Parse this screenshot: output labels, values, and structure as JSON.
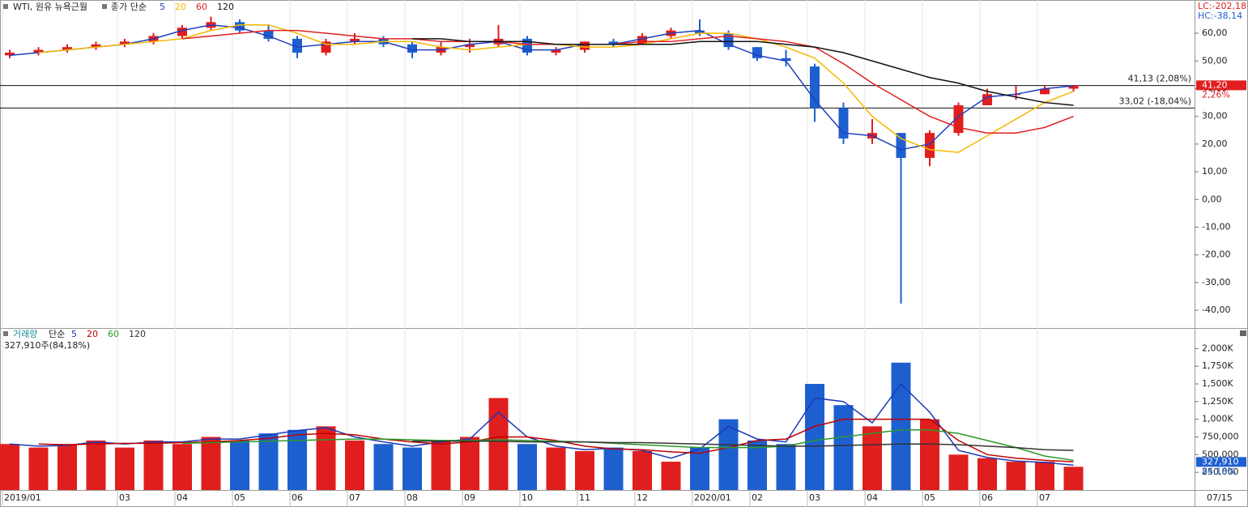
{
  "chart_data": [
    {
      "type": "candlestick",
      "title": "WTI, 원유 뉴욕근월",
      "legend_title": "종가 단순",
      "up_color": "#e01e1e",
      "down_color": "#1e5fd0",
      "open": [
        52,
        53,
        54,
        55,
        56,
        57,
        59,
        62,
        64,
        61,
        58,
        53,
        57,
        58,
        56,
        53,
        55,
        56,
        58,
        53,
        54,
        57,
        56,
        59,
        61,
        60,
        55,
        51,
        48,
        33,
        22,
        24,
        15,
        24,
        34,
        38,
        38,
        40
      ],
      "high": [
        54,
        55,
        56,
        57,
        58,
        60,
        63,
        66,
        65,
        63,
        59,
        58,
        60,
        59,
        57,
        57,
        58,
        63,
        59,
        55,
        57,
        58,
        60,
        62,
        65,
        61,
        55,
        54,
        49,
        35,
        29,
        24,
        25,
        35,
        40,
        41,
        41,
        41
      ],
      "low": [
        51,
        52,
        53,
        54,
        55,
        56,
        58,
        61,
        60,
        57,
        51,
        52,
        56,
        55,
        51,
        52,
        53,
        55,
        52,
        52,
        53,
        55,
        56,
        58,
        59,
        54,
        50,
        48,
        28,
        20,
        20,
        -37.6,
        12,
        23,
        34,
        36,
        38,
        39
      ],
      "close": [
        53,
        54,
        55,
        56,
        57,
        59,
        62,
        64,
        61,
        58,
        53,
        57,
        58,
        56,
        53,
        55,
        56,
        58,
        53,
        54,
        57,
        56,
        59,
        61,
        60,
        55,
        51,
        50,
        33,
        22,
        24,
        15,
        24,
        34,
        38,
        38,
        40,
        41.2
      ],
      "series": [
        {
          "name": "5",
          "color": "#1f3fbf",
          "values": [
            52,
            53,
            54,
            55,
            56,
            58,
            61,
            63,
            62,
            59,
            55,
            56,
            57,
            57,
            54,
            54,
            56,
            57,
            54,
            54,
            56,
            56,
            58,
            60,
            61,
            56,
            52,
            50,
            36,
            24,
            23,
            18,
            20,
            30,
            37,
            38,
            40,
            41
          ]
        },
        {
          "name": "20",
          "color": "#f5b800",
          "values": [
            null,
            53,
            54,
            55,
            56,
            57,
            58,
            61,
            63,
            63,
            60,
            56,
            56,
            57,
            57,
            55,
            54,
            55,
            56,
            56,
            55,
            55,
            56,
            58,
            60,
            60,
            58,
            55,
            51,
            42,
            30,
            22,
            18,
            17,
            23,
            29,
            35,
            39
          ]
        },
        {
          "name": "60",
          "color": "#e02020",
          "values": [
            null,
            null,
            null,
            null,
            null,
            null,
            58,
            59,
            60,
            61,
            61,
            60,
            59,
            58,
            58,
            57,
            57,
            57,
            56,
            56,
            56,
            56,
            57,
            57,
            58,
            59,
            58,
            57,
            55,
            49,
            42,
            36,
            30,
            26,
            24,
            24,
            26,
            30
          ]
        },
        {
          "name": "120",
          "color": "#111111",
          "values": [
            null,
            null,
            null,
            null,
            null,
            null,
            null,
            null,
            null,
            null,
            null,
            null,
            null,
            null,
            58,
            58,
            57,
            57,
            57,
            56,
            56,
            56,
            56,
            56,
            57,
            57,
            57,
            56,
            55,
            53,
            50,
            47,
            44,
            42,
            39,
            37,
            35,
            34
          ]
        }
      ],
      "ylim": [
        -46.4,
        72
      ],
      "yticks": [
        {
          "value": 60,
          "label": "60,00"
        },
        {
          "value": 50,
          "label": "50,00"
        },
        {
          "value": 40,
          "label": "40,00"
        },
        {
          "value": 30,
          "label": "30,00"
        },
        {
          "value": 20,
          "label": "20,00"
        },
        {
          "value": 10,
          "label": "10,00"
        },
        {
          "value": 0,
          "label": "0,00"
        },
        {
          "value": -10,
          "label": "-10,00"
        },
        {
          "value": -20,
          "label": "-20,00"
        },
        {
          "value": -30,
          "label": "-30,00"
        },
        {
          "value": -40,
          "label": "-40,00"
        }
      ],
      "hlines": [
        {
          "value": 41.13,
          "label": "41,13 (2,08%)"
        },
        {
          "value": 33.02,
          "label": "33,02 (-18,04%)"
        }
      ],
      "last_price": {
        "value": 41.2,
        "label": "41,20"
      },
      "change_label": "2,26%",
      "lc_label": "LC:-202,18",
      "hc_label": "HC:-38,14"
    },
    {
      "type": "bar",
      "title": "거래량",
      "legend_title": "단순",
      "categories": [
        "2019/01",
        null,
        null,
        null,
        "03",
        null,
        "04",
        null,
        "05",
        null,
        "06",
        null,
        "07",
        null,
        "08",
        null,
        "09",
        null,
        "10",
        null,
        "11",
        null,
        "12",
        null,
        "2020/01",
        null,
        "02",
        null,
        "03",
        null,
        "04",
        null,
        "05",
        null,
        "06",
        null,
        "07",
        null
      ],
      "x_end_label": "07/15",
      "values": [
        650000,
        600000,
        650000,
        700000,
        600000,
        700000,
        650000,
        750000,
        700000,
        800000,
        850000,
        900000,
        700000,
        650000,
        600000,
        700000,
        750000,
        1300000,
        650000,
        600000,
        550000,
        600000,
        550000,
        400000,
        600000,
        1000000,
        700000,
        650000,
        1500000,
        1200000,
        900000,
        1800000,
        1000000,
        500000,
        450000,
        400000,
        400000,
        327910
      ],
      "series": [
        {
          "name": "5",
          "color": "#1a3ab8",
          "values": [
            650000,
            620000,
            630000,
            680000,
            650000,
            680000,
            680000,
            720000,
            720000,
            780000,
            840000,
            880000,
            750000,
            680000,
            620000,
            680000,
            720000,
            1100000,
            750000,
            620000,
            570000,
            590000,
            560000,
            450000,
            580000,
            900000,
            720000,
            680000,
            1300000,
            1250000,
            950000,
            1500000,
            1100000,
            560000,
            460000,
            410000,
            390000,
            350000
          ]
        },
        {
          "name": "20",
          "color": "#c00000",
          "values": [
            null,
            650000,
            640000,
            650000,
            660000,
            660000,
            670000,
            680000,
            700000,
            730000,
            780000,
            800000,
            780000,
            720000,
            680000,
            650000,
            680000,
            750000,
            750000,
            700000,
            620000,
            580000,
            570000,
            540000,
            520000,
            600000,
            700000,
            720000,
            900000,
            1000000,
            1000000,
            1000000,
            1000000,
            700000,
            500000,
            450000,
            420000,
            400000
          ]
        },
        {
          "name": "60",
          "color": "#2a9a2a",
          "values": [
            null,
            null,
            null,
            null,
            null,
            null,
            660000,
            670000,
            680000,
            690000,
            700000,
            710000,
            720000,
            720000,
            710000,
            700000,
            700000,
            710000,
            700000,
            690000,
            680000,
            660000,
            640000,
            620000,
            600000,
            600000,
            600000,
            620000,
            700000,
            750000,
            800000,
            850000,
            850000,
            800000,
            700000,
            600000,
            480000,
            420000
          ]
        },
        {
          "name": "120",
          "color": "#333333",
          "values": [
            null,
            null,
            null,
            null,
            null,
            null,
            null,
            null,
            null,
            null,
            null,
            null,
            null,
            null,
            690000,
            690000,
            690000,
            690000,
            680000,
            680000,
            680000,
            670000,
            670000,
            660000,
            650000,
            640000,
            630000,
            620000,
            620000,
            630000,
            640000,
            650000,
            650000,
            640000,
            620000,
            600000,
            570000,
            560000
          ]
        }
      ],
      "ylim": [
        0,
        2290000
      ],
      "yticks": [
        {
          "value": 2000000,
          "label": "2,000K"
        },
        {
          "value": 1750000,
          "label": "1,750K"
        },
        {
          "value": 1500000,
          "label": "1,500K"
        },
        {
          "value": 1250000,
          "label": "1,250K"
        },
        {
          "value": 1000000,
          "label": "1,000K"
        },
        {
          "value": 750000,
          "label": "750,000"
        },
        {
          "value": 500000,
          "label": "500,000"
        },
        {
          "value": 250000,
          "label": "250,000"
        }
      ],
      "info_label": "327,910주(84,18%)",
      "last_value": {
        "value": 327910,
        "label": "327,910"
      },
      "ratio_label": "84,18%"
    }
  ]
}
